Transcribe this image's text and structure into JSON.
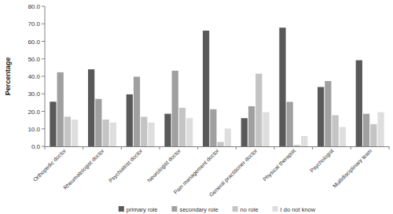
{
  "chart_data": {
    "type": "bar",
    "y_label": "Percentage",
    "categories": [
      "Orthopedic doctor",
      "Rheumatologist doctor",
      "Psychiatrist doctor",
      "Neurologist doctor",
      "Pain management doctor",
      "General practitioner doctor",
      "Physical therapist",
      "Psychologist",
      "Multidisciplinary team"
    ],
    "series": [
      {
        "name": "primary role",
        "color": "#595959",
        "values": [
          25.5,
          44.0,
          29.7,
          18.6,
          66.1,
          16.1,
          67.8,
          33.9,
          49.2
        ]
      },
      {
        "name": "secondary role",
        "color": "#a0a0a0",
        "values": [
          42.3,
          27.1,
          39.8,
          43.2,
          21.2,
          22.9,
          25.4,
          37.3,
          18.6
        ]
      },
      {
        "name": "no role",
        "color": "#c4c4c4",
        "values": [
          16.9,
          15.3,
          16.9,
          22.0,
          2.5,
          41.5,
          0.8,
          17.8,
          12.7
        ]
      },
      {
        "name": "I do not know",
        "color": "#dedede",
        "values": [
          15.3,
          13.6,
          13.6,
          16.1,
          10.2,
          19.5,
          5.9,
          11.0,
          19.5
        ]
      }
    ],
    "ylim": [
      0,
      80
    ],
    "yticks": [
      {
        "value": 0,
        "label": "0.0"
      },
      {
        "value": 10,
        "label": "10.0"
      },
      {
        "value": 20,
        "label": "20.0"
      },
      {
        "value": 30,
        "label": "30.0"
      },
      {
        "value": 40,
        "label": "40.0"
      },
      {
        "value": 50,
        "label": "50.0"
      },
      {
        "value": 60,
        "label": "60.0"
      },
      {
        "value": 70,
        "label": "70.0"
      },
      {
        "value": 80,
        "label": "80.0"
      }
    ],
    "grid": false,
    "legend": "bottom"
  }
}
